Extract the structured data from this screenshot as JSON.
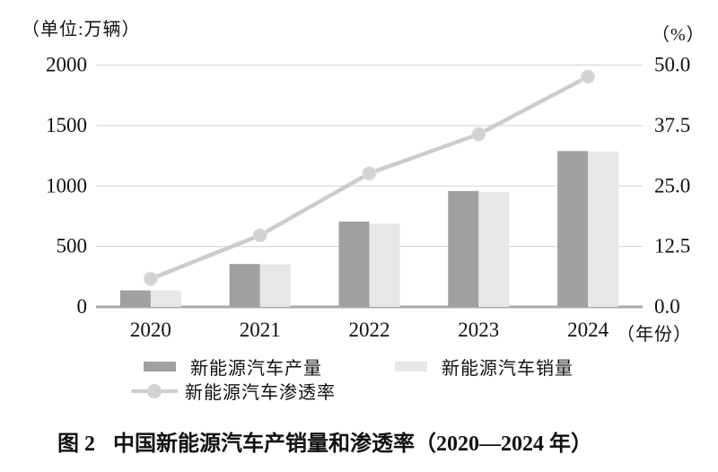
{
  "chart": {
    "left_axis_unit": "（单位:万辆）",
    "right_axis_unit": "（%）",
    "x_axis_suffix": "（年份）",
    "caption_prefix": "图 2",
    "caption_title": "中国新能源汽车产销量和渗透率（2020—2024 年）"
  },
  "legend": {
    "production": "新能源汽车产量",
    "sales": "新能源汽车销量",
    "penetration": "新能源汽车渗透率"
  },
  "colors": {
    "production_bar": "#a0a0a0",
    "sales_bar": "#e7e7e7",
    "penetration_line": "#cccccc",
    "marker_fill": "#d2d2d2",
    "marker_edge": "#e2e2e2",
    "gridline": "#d9d9d9",
    "axis_line": "#a9a9a9",
    "text": "#111111"
  },
  "chart_data": {
    "type": "bar",
    "subtype": "grouped-bars-with-line",
    "title": "图 2　中国新能源汽车产销量和渗透率（2020—2024 年）",
    "categories": [
      "2020",
      "2021",
      "2022",
      "2023",
      "2024"
    ],
    "series": [
      {
        "name": "新能源汽车产量",
        "type": "bar",
        "axis": "left",
        "values": [
          136.6,
          354.5,
          705.8,
          958.7,
          1288.8
        ]
      },
      {
        "name": "新能源汽车销量",
        "type": "bar",
        "axis": "left",
        "values": [
          136.7,
          352.1,
          688.7,
          949.5,
          1286.6
        ]
      },
      {
        "name": "新能源汽车渗透率",
        "type": "line",
        "axis": "right",
        "values": [
          5.8,
          14.8,
          27.6,
          35.7,
          47.6
        ]
      }
    ],
    "left_axis": {
      "label": "（单位:万辆）",
      "min": 0,
      "max": 2000,
      "ticks": [
        0,
        500,
        1000,
        1500,
        2000
      ],
      "tick_labels": [
        "0",
        "500",
        "1000",
        "1500",
        "2000"
      ]
    },
    "right_axis": {
      "label": "（%）",
      "min": 0,
      "max": 50,
      "ticks": [
        0,
        12.5,
        25,
        37.5,
        50
      ],
      "tick_labels": [
        "0.0",
        "12.5",
        "25.0",
        "37.5",
        "50.0"
      ]
    },
    "x_axis_suffix": "（年份）",
    "grid": true,
    "legend_position": "bottom"
  }
}
